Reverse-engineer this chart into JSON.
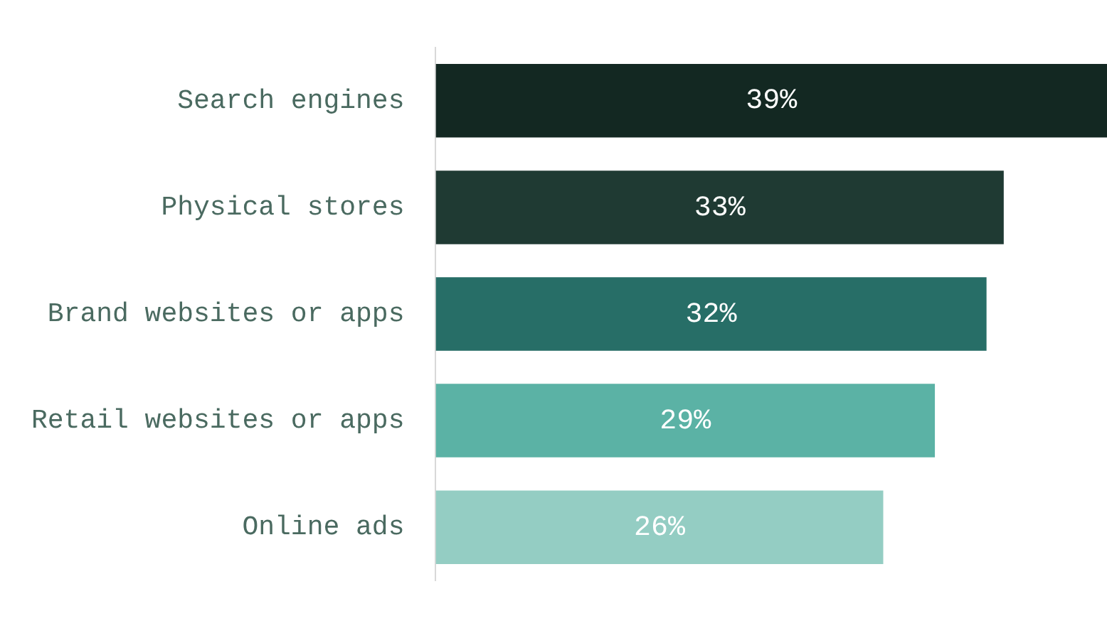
{
  "chart_data": {
    "type": "bar",
    "orientation": "horizontal",
    "categories": [
      "Search engines",
      "Physical stores",
      "Brand websites or apps",
      "Retail websites or apps",
      "Online ads"
    ],
    "values": [
      39,
      33,
      32,
      29,
      26
    ],
    "colors": [
      "#132822",
      "#1f3a33",
      "#276e67",
      "#5bb2a5",
      "#94cdc3"
    ],
    "value_labels": [
      "39%",
      "33%",
      "32%",
      "29%",
      "26%"
    ],
    "legend": false
  }
}
